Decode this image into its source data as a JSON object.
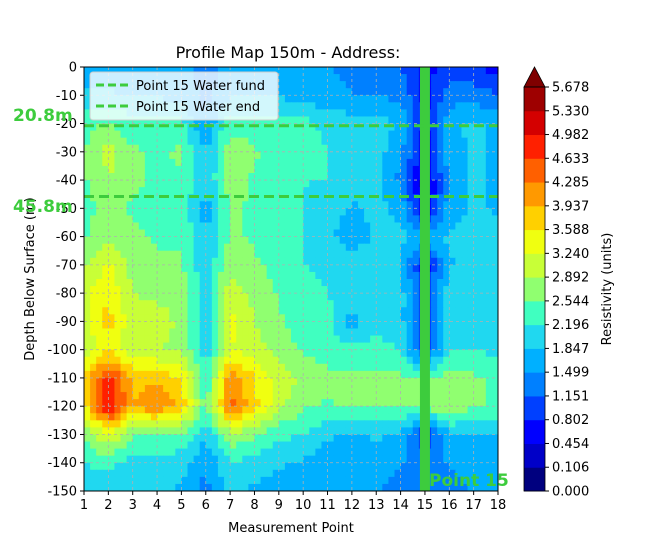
{
  "chart_data": {
    "type": "heatmap",
    "title": "Profile Map 150m - Address:",
    "xlabel": "Measurement Point",
    "ylabel": "Depth Below Surface (m)",
    "colorbar_label": "Resistivity (units)",
    "xlim": [
      1,
      18
    ],
    "ylim": [
      -150,
      0
    ],
    "x_ticks": [
      "1",
      "2",
      "3",
      "4",
      "5",
      "6",
      "7",
      "8",
      "9",
      "10",
      "11",
      "12",
      "13",
      "14",
      "15",
      "16",
      "17",
      "18"
    ],
    "y_ticks": [
      "0",
      "-10",
      "-20",
      "-30",
      "-40",
      "-50",
      "-60",
      "-70",
      "-80",
      "-90",
      "-100",
      "-110",
      "-120",
      "-130",
      "-140",
      "-150"
    ],
    "grid": true,
    "colorbar_ticks": [
      "0.000",
      "0.106",
      "0.454",
      "0.802",
      "1.151",
      "1.499",
      "1.847",
      "2.196",
      "2.544",
      "2.892",
      "3.240",
      "3.588",
      "3.937",
      "4.285",
      "4.633",
      "4.982",
      "5.330",
      "5.678"
    ],
    "colorbar_colors": [
      "#00007f",
      "#0000c8",
      "#0000ff",
      "#0040ff",
      "#0080ff",
      "#00b0ff",
      "#20d8f0",
      "#40ffc0",
      "#90ff70",
      "#c8ff37",
      "#f0ff10",
      "#ffd000",
      "#ff9900",
      "#ff6000",
      "#ff2000",
      "#d40000",
      "#9e0000",
      "#7f0000"
    ],
    "highlight_x": 15,
    "highlight_color": "#3dcc3d",
    "water_start_depth": -20.8,
    "water_end_depth": -45.8,
    "water_start_label": "20.8m",
    "water_end_label": "45.8m",
    "highlight_label": "Point 15",
    "legend": {
      "position": "upper-left",
      "entries": [
        "Point 15 Water fund",
        "Point 15 Water end"
      ]
    },
    "depths": [
      0,
      -10,
      -20,
      -30,
      -40,
      -50,
      -60,
      -70,
      -80,
      -90,
      -100,
      -110,
      -120,
      -130,
      -140,
      -150
    ],
    "values": [
      [
        1.6,
        1.7,
        1.6,
        1.6,
        1.6,
        1.3,
        1.6,
        1.6,
        1.6,
        1.6,
        1.5,
        1.4,
        1.3,
        1.2,
        0.6,
        1.0,
        0.9,
        0.6
      ],
      [
        1.9,
        1.9,
        1.8,
        1.8,
        1.7,
        1.4,
        1.8,
        1.8,
        1.8,
        1.7,
        1.6,
        1.5,
        1.5,
        1.4,
        0.7,
        1.3,
        1.3,
        1.2
      ],
      [
        2.4,
        2.6,
        2.3,
        2.3,
        2.3,
        1.5,
        2.4,
        2.4,
        2.3,
        2.3,
        2.1,
        2.0,
        2.0,
        1.8,
        0.7,
        1.8,
        1.9,
        1.8
      ],
      [
        2.5,
        3.0,
        2.6,
        2.5,
        2.6,
        1.8,
        2.8,
        2.6,
        2.3,
        2.3,
        2.2,
        2.1,
        2.0,
        1.6,
        0.5,
        1.7,
        1.9,
        1.8
      ],
      [
        2.5,
        2.9,
        2.6,
        2.5,
        2.5,
        1.9,
        2.7,
        2.5,
        2.3,
        2.2,
        2.2,
        2.0,
        2.0,
        1.4,
        0.3,
        1.6,
        1.9,
        1.8
      ],
      [
        2.4,
        2.7,
        2.5,
        2.4,
        2.4,
        1.7,
        2.6,
        2.5,
        2.2,
        2.2,
        2.0,
        1.8,
        1.9,
        1.8,
        0.3,
        1.7,
        1.9,
        1.8
      ],
      [
        2.5,
        2.8,
        2.6,
        2.5,
        2.5,
        1.8,
        2.6,
        2.5,
        2.3,
        2.2,
        1.9,
        1.7,
        1.9,
        1.9,
        1.8,
        1.9,
        2.0,
        1.9
      ],
      [
        2.8,
        3.3,
        2.7,
        2.6,
        2.6,
        1.9,
        2.8,
        2.6,
        2.4,
        2.2,
        2.1,
        2.0,
        2.0,
        1.9,
        0.6,
        1.8,
        2.0,
        1.9
      ],
      [
        3.1,
        3.6,
        2.9,
        2.8,
        2.7,
        2.0,
        3.1,
        2.8,
        2.5,
        2.3,
        2.2,
        2.1,
        2.1,
        2.0,
        0.9,
        2.1,
        2.1,
        2.0
      ],
      [
        3.1,
        3.7,
        3.0,
        3.1,
        2.8,
        2.0,
        3.4,
        2.9,
        2.6,
        2.4,
        2.3,
        1.7,
        2.1,
        2.0,
        0.7,
        2.1,
        2.1,
        2.0
      ],
      [
        3.0,
        3.5,
        3.0,
        2.9,
        2.8,
        2.0,
        3.2,
        3.1,
        2.7,
        2.5,
        2.4,
        2.3,
        2.3,
        2.2,
        0.9,
        2.2,
        2.2,
        2.1
      ],
      [
        3.6,
        4.8,
        3.9,
        3.8,
        3.6,
        2.2,
        4.2,
        3.6,
        3.1,
        2.8,
        2.6,
        2.6,
        2.6,
        2.6,
        2.6,
        2.7,
        2.6,
        2.5
      ],
      [
        3.5,
        5.1,
        3.9,
        4.3,
        3.8,
        2.4,
        4.4,
        3.7,
        3.0,
        2.6,
        2.5,
        2.6,
        2.6,
        2.6,
        2.7,
        2.9,
        2.6,
        2.5
      ],
      [
        2.6,
        3.3,
        2.6,
        2.5,
        2.5,
        1.9,
        2.8,
        2.6,
        2.3,
        2.2,
        1.9,
        1.8,
        1.9,
        1.8,
        0.8,
        1.8,
        1.8,
        1.8
      ],
      [
        2.2,
        2.3,
        2.1,
        2.1,
        2.0,
        1.5,
        2.2,
        2.0,
        1.9,
        1.8,
        1.6,
        1.6,
        1.7,
        1.5,
        1.4,
        1.5,
        1.6,
        1.6
      ],
      [
        2.0,
        2.0,
        1.9,
        1.9,
        1.8,
        1.4,
        1.9,
        1.8,
        1.7,
        1.6,
        1.5,
        1.5,
        1.5,
        1.4,
        1.3,
        1.4,
        1.5,
        1.5
      ]
    ]
  }
}
